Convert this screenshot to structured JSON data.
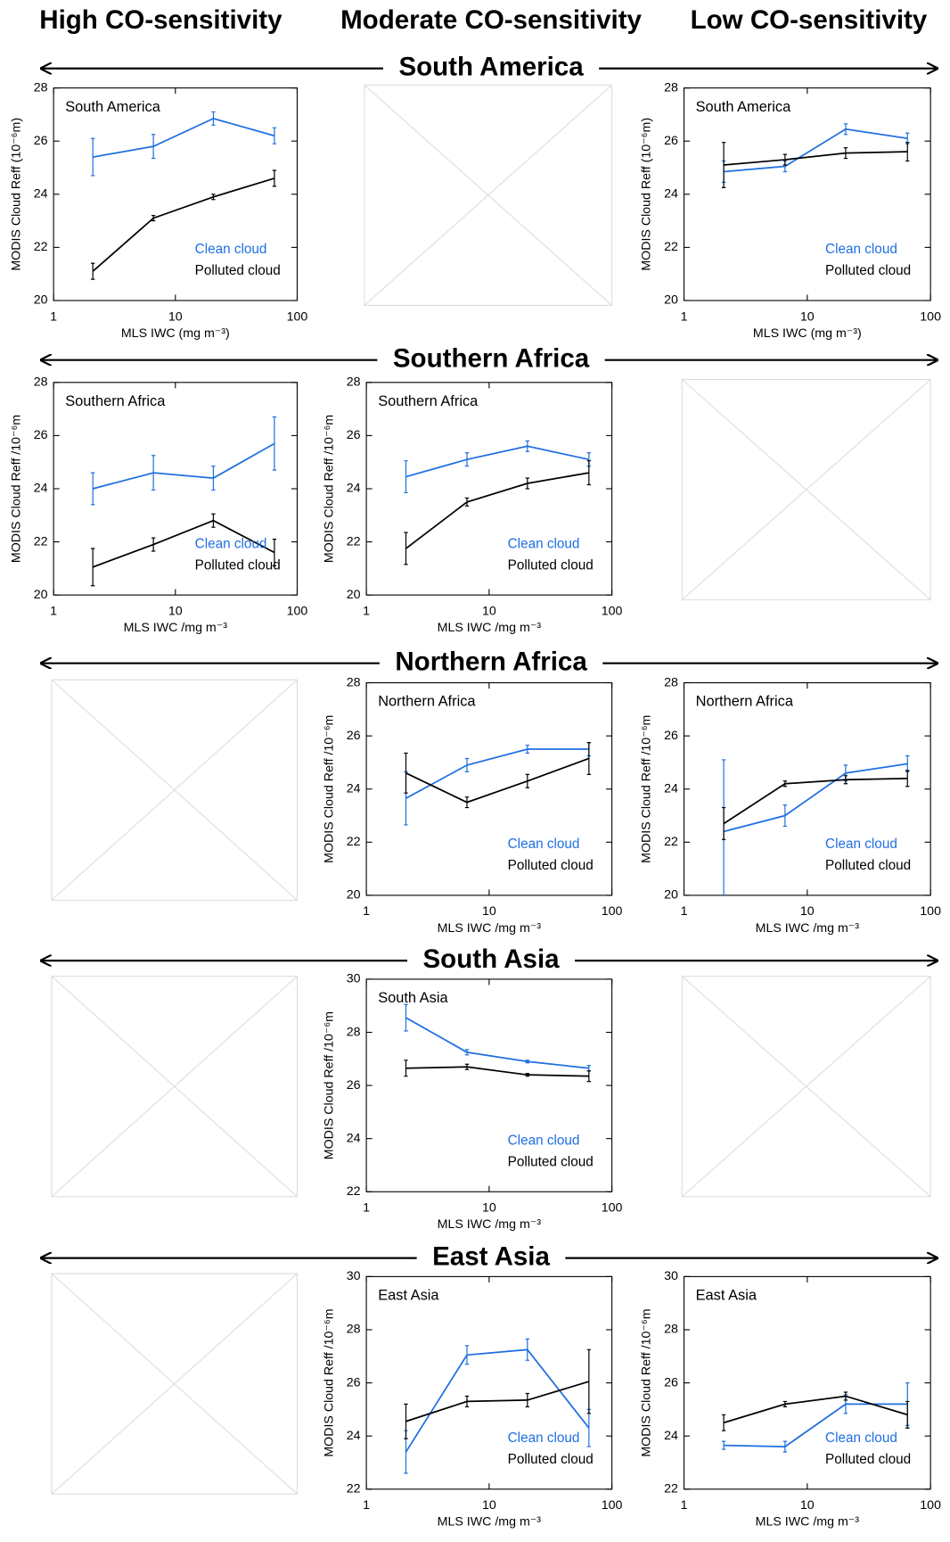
{
  "columns": [
    "High CO-sensitivity",
    "Moderate CO-sensitivity",
    "Low CO-sensitivity"
  ],
  "regions": [
    "South America",
    "Southern Africa",
    "Northern Africa",
    "South Asia",
    "East Asia"
  ],
  "chart_data": [
    {
      "type": "line",
      "title": "South America",
      "xlabel": "MLS IWC (mg m⁻³)",
      "ylabel": "MODIS Cloud Reff (10⁻⁶m)",
      "xscale": "log",
      "x": [
        2.1,
        6.6,
        20.5,
        65
      ],
      "xlim": [
        1,
        100
      ],
      "xticks": [
        1,
        10,
        100
      ],
      "ylim": [
        20,
        28
      ],
      "yticks": [
        20,
        22,
        24,
        26,
        28
      ],
      "series": [
        {
          "name": "Clean cloud",
          "color": "#1f6fe0",
          "values": [
            25.4,
            25.8,
            26.85,
            26.2
          ],
          "errors": [
            0.7,
            0.45,
            0.25,
            0.3
          ]
        },
        {
          "name": "Polluted cloud",
          "color": "#000000",
          "values": [
            21.1,
            23.1,
            23.9,
            24.6
          ],
          "errors": [
            0.3,
            0.1,
            0.1,
            0.3
          ]
        }
      ]
    },
    {
      "type": "line",
      "title": "South America",
      "xlabel": "MLS IWC (mg m⁻³)",
      "ylabel": "MODIS Cloud Reff (10⁻⁶m)",
      "xscale": "log",
      "x": [
        2.1,
        6.6,
        20.5,
        65
      ],
      "xlim": [
        1,
        100
      ],
      "xticks": [
        1,
        10,
        100
      ],
      "ylim": [
        20,
        28
      ],
      "yticks": [
        20,
        22,
        24,
        26,
        28
      ],
      "series": [
        {
          "name": "Clean cloud",
          "color": "#1f6fe0",
          "values": [
            24.85,
            25.05,
            26.45,
            26.1
          ],
          "errors": [
            0.4,
            0.2,
            0.2,
            0.2
          ]
        },
        {
          "name": "Polluted cloud",
          "color": "#000000",
          "values": [
            25.1,
            25.3,
            25.55,
            25.6
          ],
          "errors": [
            0.85,
            0.2,
            0.2,
            0.35
          ]
        }
      ]
    },
    {
      "type": "line",
      "title": "Southern Africa",
      "xlabel": "MLS IWC /mg m⁻³",
      "ylabel": "MODIS Cloud Reff /10⁻⁶m",
      "xscale": "log",
      "x": [
        2.1,
        6.6,
        20.5,
        65
      ],
      "xlim": [
        1,
        100
      ],
      "xticks": [
        1,
        10,
        100
      ],
      "ylim": [
        20,
        28
      ],
      "yticks": [
        20,
        22,
        24,
        26,
        28
      ],
      "series": [
        {
          "name": "Clean cloud",
          "color": "#1f6fe0",
          "values": [
            24.0,
            24.6,
            24.4,
            25.7
          ],
          "errors": [
            0.6,
            0.65,
            0.45,
            1.0
          ]
        },
        {
          "name": "Polluted cloud",
          "color": "#000000",
          "values": [
            21.05,
            21.9,
            22.8,
            21.6
          ],
          "errors": [
            0.7,
            0.25,
            0.25,
            0.5
          ]
        }
      ]
    },
    {
      "type": "line",
      "title": "Southern Africa",
      "xlabel": "MLS IWC /mg m⁻³",
      "ylabel": "MODIS Cloud Reff /10⁻⁶m",
      "xscale": "log",
      "x": [
        2.1,
        6.6,
        20.5,
        65
      ],
      "xlim": [
        1,
        100
      ],
      "xticks": [
        1,
        10,
        100
      ],
      "ylim": [
        20,
        28
      ],
      "yticks": [
        20,
        22,
        24,
        26,
        28
      ],
      "series": [
        {
          "name": "Clean cloud",
          "color": "#1f6fe0",
          "values": [
            24.45,
            25.1,
            25.6,
            25.1
          ],
          "errors": [
            0.6,
            0.25,
            0.2,
            0.25
          ]
        },
        {
          "name": "Polluted cloud",
          "color": "#000000",
          "values": [
            21.75,
            23.5,
            24.2,
            24.6
          ],
          "errors": [
            0.6,
            0.15,
            0.2,
            0.45
          ]
        }
      ]
    },
    {
      "type": "line",
      "title": "Northern Africa",
      "xlabel": "MLS IWC /mg m⁻³",
      "ylabel": "MODIS Cloud Reff /10⁻⁶m",
      "xscale": "log",
      "x": [
        2.1,
        6.6,
        20.5,
        65
      ],
      "xlim": [
        1,
        100
      ],
      "xticks": [
        1,
        10,
        100
      ],
      "ylim": [
        20,
        28
      ],
      "yticks": [
        20,
        22,
        24,
        26,
        28
      ],
      "series": [
        {
          "name": "Clean cloud",
          "color": "#1f6fe0",
          "values": [
            23.65,
            24.9,
            25.5,
            25.5
          ],
          "errors": [
            1.0,
            0.25,
            0.15,
            0.25
          ]
        },
        {
          "name": "Polluted cloud",
          "color": "#000000",
          "values": [
            24.6,
            23.5,
            24.3,
            25.15
          ],
          "errors": [
            0.75,
            0.2,
            0.25,
            0.6
          ]
        }
      ]
    },
    {
      "type": "line",
      "title": "Northern Africa",
      "xlabel": "MLS IWC /mg m⁻³",
      "ylabel": "MODIS Cloud Reff /10⁻⁶m",
      "xscale": "log",
      "x": [
        2.1,
        6.6,
        20.5,
        65
      ],
      "xlim": [
        1,
        100
      ],
      "xticks": [
        1,
        10,
        100
      ],
      "ylim": [
        20,
        28
      ],
      "yticks": [
        20,
        22,
        24,
        26,
        28
      ],
      "series": [
        {
          "name": "Clean cloud",
          "color": "#1f6fe0",
          "values": [
            22.4,
            23.0,
            24.6,
            24.95
          ],
          "errors": [
            2.7,
            0.4,
            0.3,
            0.3
          ]
        },
        {
          "name": "Polluted cloud",
          "color": "#000000",
          "values": [
            22.7,
            24.2,
            24.35,
            24.4
          ],
          "errors": [
            0.6,
            0.1,
            0.15,
            0.3
          ]
        }
      ]
    },
    {
      "type": "line",
      "title": "South Asia",
      "xlabel": "MLS IWC /mg m⁻³",
      "ylabel": "MODIS Cloud Reff /10⁻⁶m",
      "xscale": "log",
      "x": [
        2.1,
        6.6,
        20.5,
        65
      ],
      "xlim": [
        1,
        100
      ],
      "xticks": [
        1,
        10,
        100
      ],
      "ylim": [
        22,
        30
      ],
      "yticks": [
        22,
        24,
        26,
        28,
        30
      ],
      "series": [
        {
          "name": "Clean cloud",
          "color": "#1f6fe0",
          "values": [
            28.55,
            27.25,
            26.9,
            26.65
          ],
          "errors": [
            0.5,
            0.1,
            0.05,
            0.1
          ]
        },
        {
          "name": "Polluted cloud",
          "color": "#000000",
          "values": [
            26.65,
            26.7,
            26.4,
            26.35
          ],
          "errors": [
            0.3,
            0.1,
            0.05,
            0.2
          ]
        }
      ]
    },
    {
      "type": "line",
      "title": "East Asia",
      "xlabel": "MLS IWC /mg m⁻³",
      "ylabel": "MODIS Cloud Reff /10⁻⁶m",
      "xscale": "log",
      "x": [
        2.1,
        6.6,
        20.5,
        65
      ],
      "xlim": [
        1,
        100
      ],
      "xticks": [
        1,
        10,
        100
      ],
      "ylim": [
        22,
        30
      ],
      "yticks": [
        22,
        24,
        26,
        28,
        30
      ],
      "series": [
        {
          "name": "Clean cloud",
          "color": "#1f6fe0",
          "values": [
            23.4,
            27.05,
            27.25,
            24.3
          ],
          "errors": [
            0.8,
            0.35,
            0.4,
            0.7
          ]
        },
        {
          "name": "Polluted cloud",
          "color": "#000000",
          "values": [
            24.55,
            25.3,
            25.35,
            26.05
          ],
          "errors": [
            0.65,
            0.2,
            0.25,
            1.2
          ]
        }
      ]
    },
    {
      "type": "line",
      "title": "East Asia",
      "xlabel": "MLS IWC /mg m⁻³",
      "ylabel": "MODIS Cloud Reff /10⁻⁶m",
      "xscale": "log",
      "x": [
        2.1,
        6.6,
        20.5,
        65
      ],
      "xlim": [
        1,
        100
      ],
      "xticks": [
        1,
        10,
        100
      ],
      "ylim": [
        22,
        30
      ],
      "yticks": [
        22,
        24,
        26,
        28,
        30
      ],
      "series": [
        {
          "name": "Clean cloud",
          "color": "#1f6fe0",
          "values": [
            23.65,
            23.6,
            25.2,
            25.2
          ],
          "errors": [
            0.15,
            0.2,
            0.35,
            0.8
          ]
        },
        {
          "name": "Polluted cloud",
          "color": "#000000",
          "values": [
            24.5,
            25.2,
            25.5,
            24.8
          ],
          "errors": [
            0.3,
            0.1,
            0.15,
            0.5
          ]
        }
      ]
    }
  ]
}
